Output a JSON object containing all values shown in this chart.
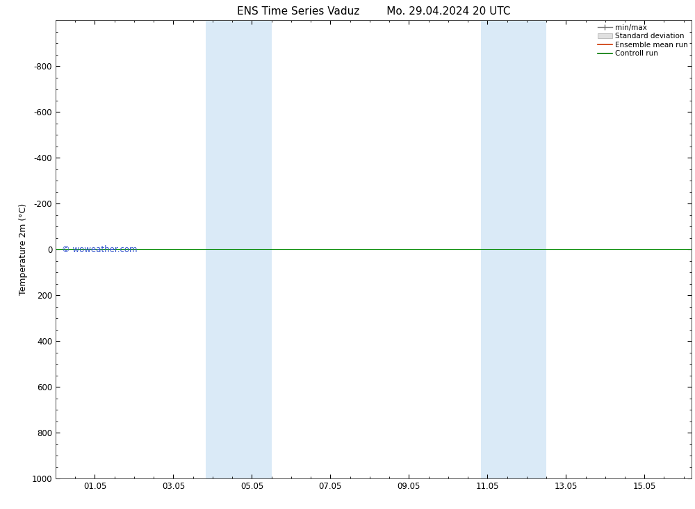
{
  "title_left": "ENS Time Series Vaduz",
  "title_right": "Mo. 29.04.2024 20 UTC",
  "ylabel": "Temperature 2m (°C)",
  "ylim_bottom": 1000,
  "ylim_top": -1000,
  "yticks": [
    -800,
    -600,
    -400,
    -200,
    0,
    200,
    400,
    600,
    800,
    1000
  ],
  "xlim_start": 0.0,
  "xlim_end": 16.2,
  "xtick_positions": [
    1.0,
    3.0,
    5.0,
    7.0,
    9.0,
    11.0,
    13.0,
    15.0
  ],
  "xtick_labels": [
    "01.05",
    "03.05",
    "05.05",
    "07.05",
    "09.05",
    "11.05",
    "13.05",
    "15.05"
  ],
  "shaded_bands": [
    {
      "x_start": 3.83,
      "x_end": 5.5
    },
    {
      "x_start": 10.83,
      "x_end": 12.5
    }
  ],
  "band_color": "#daeaf7",
  "hline_y": 0,
  "hline_color": "#008800",
  "hline_lw": 0.8,
  "watermark": "© woweather.com",
  "watermark_color": "#3355cc",
  "watermark_fontsize": 8.5,
  "legend_labels": [
    "min/max",
    "Standard deviation",
    "Ensemble mean run",
    "Controll run"
  ],
  "legend_colors_line": [
    "#888888",
    "#cccccc",
    "#cc3300",
    "#007700"
  ],
  "background_color": "#ffffff",
  "plot_bg_color": "#ffffff",
  "border_color": "#444444",
  "title_fontsize": 11,
  "axis_label_fontsize": 9,
  "tick_fontsize": 8.5,
  "legend_fontsize": 7.5
}
